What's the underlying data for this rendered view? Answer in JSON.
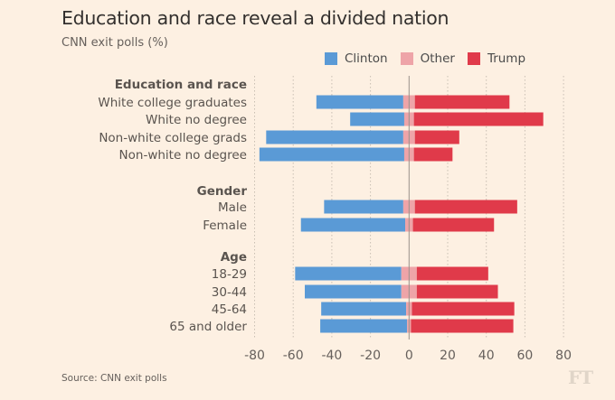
{
  "title": "Education and race reveal a divided nation",
  "subtitle": "CNN exit polls (%)",
  "source": "Source: CNN exit polls",
  "logo": "FT",
  "colors": {
    "background": "#fdf0e2",
    "Clinton": "#5a9ad6",
    "Other": "#eea4a8",
    "Trump": "#e03a4a",
    "grid": "#c9bfb3",
    "zero": "#9a918a"
  },
  "legend": [
    {
      "name": "Clinton",
      "color": "#5a9ad6"
    },
    {
      "name": "Other",
      "color": "#eea4a8"
    },
    {
      "name": "Trump",
      "color": "#e03a4a"
    }
  ],
  "chart_data": {
    "type": "bar",
    "orientation": "horizontal",
    "stacking": "diverging (Other centered on zero, Clinton to the left, Trump to the right)",
    "title": "Education and race reveal a divided nation",
    "subtitle": "CNN exit polls (%)",
    "xlabel": "",
    "ylabel": "",
    "xlim": [
      -80,
      80
    ],
    "x_ticks": [
      -80,
      -60,
      -40,
      -20,
      0,
      20,
      40,
      60,
      80
    ],
    "x_tick_labels": [
      "-80",
      "-60",
      "-40",
      "-20",
      "0",
      "20",
      "40",
      "60",
      "80"
    ],
    "grid": true,
    "legend_position": "top-right",
    "series_names": [
      "Clinton",
      "Other",
      "Trump"
    ],
    "groups": [
      {
        "name": "Education and race",
        "categories": [
          {
            "label": "White college graduates",
            "Clinton": 45,
            "Other": 6,
            "Trump": 49
          },
          {
            "label": "White no degree",
            "Clinton": 28,
            "Other": 5,
            "Trump": 67
          },
          {
            "label": "Non-white college grads",
            "Clinton": 71,
            "Other": 6,
            "Trump": 23
          },
          {
            "label": "Non-white no degree",
            "Clinton": 75,
            "Other": 5,
            "Trump": 20
          }
        ]
      },
      {
        "name": "Gender",
        "categories": [
          {
            "label": "Male",
            "Clinton": 41,
            "Other": 6,
            "Trump": 53
          },
          {
            "label": "Female",
            "Clinton": 54,
            "Other": 4,
            "Trump": 42
          }
        ]
      },
      {
        "name": "Age",
        "categories": [
          {
            "label": "18-29",
            "Clinton": 55,
            "Other": 8,
            "Trump": 37
          },
          {
            "label": "30-44",
            "Clinton": 50,
            "Other": 8,
            "Trump": 42
          },
          {
            "label": "45-64",
            "Clinton": 44,
            "Other": 3,
            "Trump": 53
          },
          {
            "label": "65 and older",
            "Clinton": 45,
            "Other": 2,
            "Trump": 53
          }
        ]
      }
    ]
  }
}
